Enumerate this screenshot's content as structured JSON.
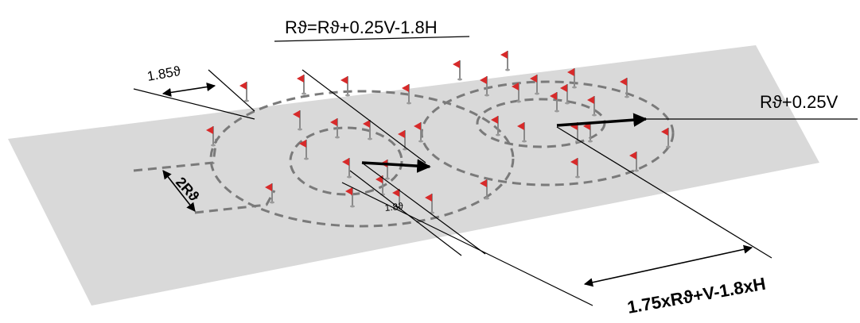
{
  "labels": {
    "top_formula": "Rϑ=Rϑ+0.25V-1.8H",
    "right_formula": "Rϑ+0.25V",
    "bottom_formula": "1.75xRϑ+V-1.8xH",
    "dim_a": "1.85ϑ",
    "dim_b": "2Rϑ",
    "dim_c": "1.8ϑ"
  },
  "colors": {
    "ground": "#d9d9d9",
    "dash": "#7a7a7a",
    "flag": "#d72a2a",
    "pole": "#8a8a8a",
    "line": "#000000"
  },
  "icons": [
    "flag-icon",
    "arrow-icon",
    "double-arrow-icon"
  ]
}
